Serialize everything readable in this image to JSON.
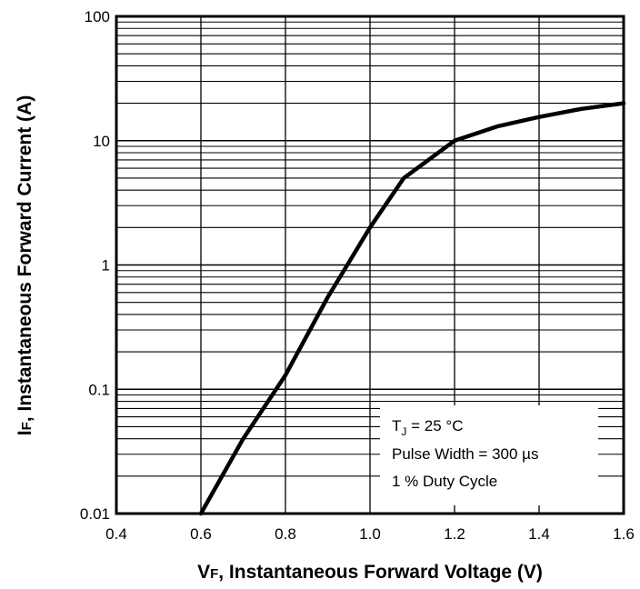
{
  "chart_data": {
    "type": "line",
    "xlabel_prefix": "V",
    "xlabel_sub": "F",
    "xlabel_rest": ", Instantaneous Forward Voltage (V)",
    "ylabel_prefix": "I",
    "ylabel_sub": "F",
    "ylabel_rest": ", Instantaneous Forward Current (A)",
    "xlim": [
      0.4,
      1.6
    ],
    "ylim": [
      0.01,
      100
    ],
    "y_scale": "log",
    "grid": true,
    "x_ticks": [
      "0.4",
      "0.6",
      "0.8",
      "1.0",
      "1.2",
      "1.4",
      "1.6"
    ],
    "y_ticks": [
      "0.01",
      "0.1",
      "1",
      "10",
      "100"
    ],
    "series": [
      {
        "x": [
          0.6,
          0.7,
          0.8,
          0.9,
          1.0,
          1.08,
          1.2,
          1.3,
          1.4,
          1.5,
          1.6
        ],
        "y": [
          0.01,
          0.04,
          0.13,
          0.55,
          2.0,
          5.0,
          10.0,
          13.0,
          15.5,
          18.0,
          20.0
        ]
      }
    ],
    "annotation": {
      "line1_prefix": "T",
      "line1_sub": "J",
      "line1_rest": " = 25 °C",
      "line2": "Pulse Width = 300 µs",
      "line3": "1 % Duty Cycle"
    }
  }
}
